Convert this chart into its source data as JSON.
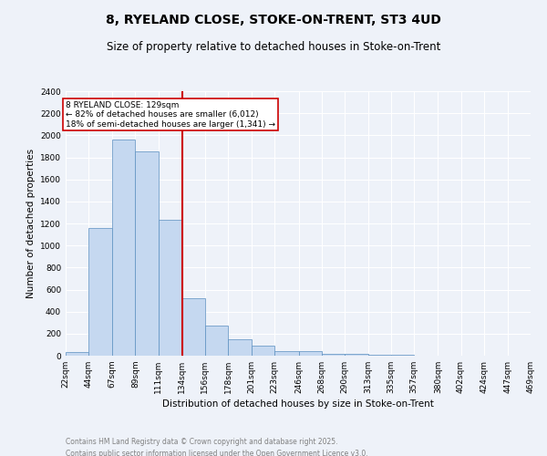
{
  "title_line1": "8, RYELAND CLOSE, STOKE-ON-TRENT, ST3 4UD",
  "title_line2": "Size of property relative to detached houses in Stoke-on-Trent",
  "xlabel": "Distribution of detached houses by size in Stoke-on-Trent",
  "ylabel": "Number of detached properties",
  "bar_edges": [
    22,
    44,
    67,
    89,
    111,
    134,
    156,
    178,
    201,
    223,
    246,
    268,
    290,
    313,
    335,
    357,
    380,
    402,
    424,
    447,
    469
  ],
  "bar_heights": [
    30,
    1160,
    1960,
    1850,
    1230,
    520,
    270,
    150,
    90,
    45,
    42,
    20,
    15,
    8,
    5,
    3,
    2,
    2,
    1,
    1
  ],
  "bar_color": "#c5d8f0",
  "bar_edge_color": "#5a8fc0",
  "vline_x": 134,
  "vline_color": "#cc0000",
  "annotation_text": "8 RYELAND CLOSE: 129sqm\n← 82% of detached houses are smaller (6,012)\n18% of semi-detached houses are larger (1,341) →",
  "annotation_box_color": "#cc0000",
  "ylim": [
    0,
    2400
  ],
  "yticks": [
    0,
    200,
    400,
    600,
    800,
    1000,
    1200,
    1400,
    1600,
    1800,
    2000,
    2200,
    2400
  ],
  "tick_labels": [
    "22sqm",
    "44sqm",
    "67sqm",
    "89sqm",
    "111sqm",
    "134sqm",
    "156sqm",
    "178sqm",
    "201sqm",
    "223sqm",
    "246sqm",
    "268sqm",
    "290sqm",
    "313sqm",
    "335sqm",
    "357sqm",
    "380sqm",
    "402sqm",
    "424sqm",
    "447sqm",
    "469sqm"
  ],
  "footnote1": "Contains HM Land Registry data © Crown copyright and database right 2025.",
  "footnote2": "Contains public sector information licensed under the Open Government Licence v3.0.",
  "bg_color": "#eef2f9",
  "plot_bg_color": "#eef2f9",
  "grid_color": "#ffffff",
  "title_fontsize": 10,
  "subtitle_fontsize": 8.5,
  "label_fontsize": 7.5,
  "tick_fontsize": 6.5,
  "annot_fontsize": 6.5
}
